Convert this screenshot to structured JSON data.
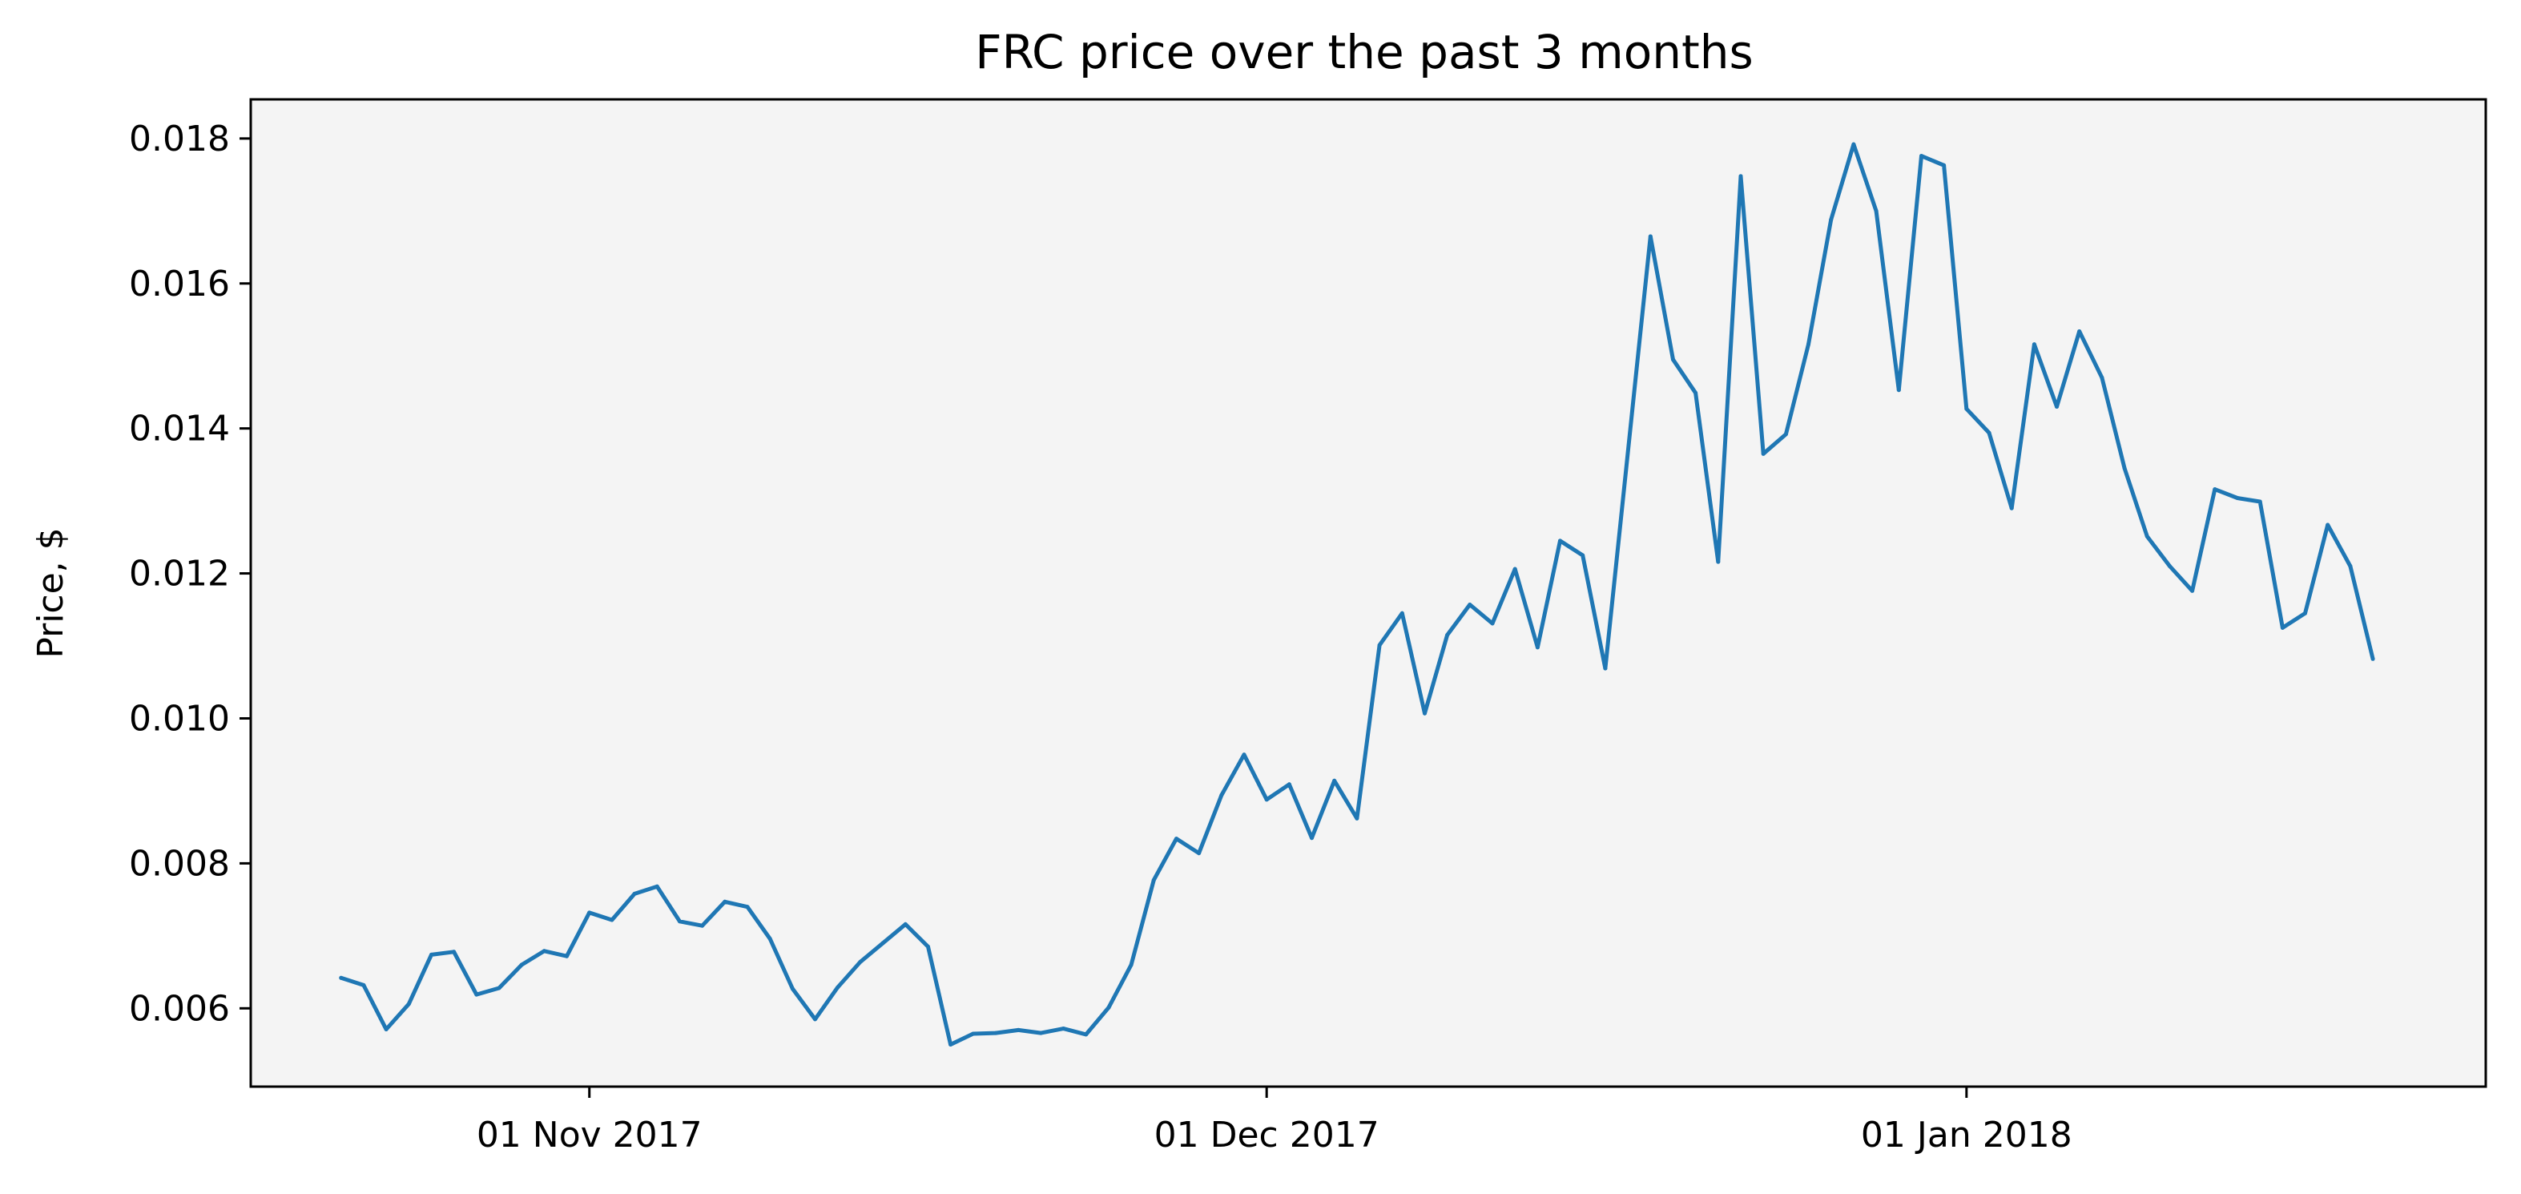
{
  "chart_data": {
    "type": "line",
    "title": "FRC price over the past 3 months",
    "xlabel": "",
    "ylabel": "Price, $",
    "x_scale": "time",
    "xlim": [
      "2017-10-17",
      "2018-01-24"
    ],
    "x_ticks": [
      {
        "date": "2017-11-01",
        "label": "01 Nov 2017"
      },
      {
        "date": "2017-12-01",
        "label": "01 Dec 2017"
      },
      {
        "date": "2018-01-01",
        "label": "01 Jan 2018"
      }
    ],
    "ylim": [
      0.00492,
      0.01854
    ],
    "y_ticks": [
      0.006,
      0.008,
      0.01,
      0.012,
      0.014,
      0.016,
      0.018
    ],
    "y_tick_labels": [
      "0.006",
      "0.008",
      "0.010",
      "0.012",
      "0.014",
      "0.016",
      "0.018"
    ],
    "grid": false,
    "plot_background": "#f4f4f4",
    "series": [
      {
        "color": "#1f77b4",
        "points": [
          [
            "2017-10-21",
            0.00642
          ],
          [
            "2017-10-22",
            0.00632
          ],
          [
            "2017-10-23",
            0.00571
          ],
          [
            "2017-10-24",
            0.00606
          ],
          [
            "2017-10-25",
            0.00674
          ],
          [
            "2017-10-26",
            0.00678
          ],
          [
            "2017-10-27",
            0.00619
          ],
          [
            "2017-10-28",
            0.00628
          ],
          [
            "2017-10-29",
            0.0066
          ],
          [
            "2017-10-30",
            0.00679
          ],
          [
            "2017-10-31",
            0.00672
          ],
          [
            "2017-11-01",
            0.00732
          ],
          [
            "2017-11-02",
            0.00722
          ],
          [
            "2017-11-03",
            0.00758
          ],
          [
            "2017-11-04",
            0.00768
          ],
          [
            "2017-11-05",
            0.0072
          ],
          [
            "2017-11-06",
            0.00714
          ],
          [
            "2017-11-07",
            0.00747
          ],
          [
            "2017-11-08",
            0.0074
          ],
          [
            "2017-11-09",
            0.00696
          ],
          [
            "2017-11-10",
            0.00627
          ],
          [
            "2017-11-11",
            0.00585
          ],
          [
            "2017-11-12",
            0.00629
          ],
          [
            "2017-11-13",
            0.00664
          ],
          [
            "2017-11-14",
            0.0069
          ],
          [
            "2017-11-15",
            0.00716
          ],
          [
            "2017-11-16",
            0.00685
          ],
          [
            "2017-11-17",
            0.0055
          ],
          [
            "2017-11-18",
            0.00565
          ],
          [
            "2017-11-19",
            0.00566
          ],
          [
            "2017-11-20",
            0.0057
          ],
          [
            "2017-11-21",
            0.00566
          ],
          [
            "2017-11-22",
            0.00572
          ],
          [
            "2017-11-23",
            0.00564
          ],
          [
            "2017-11-24",
            0.00601
          ],
          [
            "2017-11-25",
            0.0066
          ],
          [
            "2017-11-26",
            0.00777
          ],
          [
            "2017-11-27",
            0.00834
          ],
          [
            "2017-11-28",
            0.00814
          ],
          [
            "2017-11-29",
            0.00894
          ],
          [
            "2017-11-30",
            0.0095
          ],
          [
            "2017-12-01",
            0.00888
          ],
          [
            "2017-12-02",
            0.00909
          ],
          [
            "2017-12-03",
            0.00835
          ],
          [
            "2017-12-04",
            0.00914
          ],
          [
            "2017-12-05",
            0.00862
          ],
          [
            "2017-12-06",
            0.01101
          ],
          [
            "2017-12-07",
            0.01145
          ],
          [
            "2017-12-08",
            0.01007
          ],
          [
            "2017-12-09",
            0.01115
          ],
          [
            "2017-12-10",
            0.01157
          ],
          [
            "2017-12-11",
            0.01131
          ],
          [
            "2017-12-12",
            0.01206
          ],
          [
            "2017-12-13",
            0.01098
          ],
          [
            "2017-12-14",
            0.01245
          ],
          [
            "2017-12-15",
            0.01225
          ],
          [
            "2017-12-16",
            0.01069
          ],
          [
            "2017-12-18",
            0.01665
          ],
          [
            "2017-12-19",
            0.01495
          ],
          [
            "2017-12-20",
            0.01449
          ],
          [
            "2017-12-21",
            0.01216
          ],
          [
            "2017-12-22",
            0.01748
          ],
          [
            "2017-12-23",
            0.01365
          ],
          [
            "2017-12-24",
            0.01392
          ],
          [
            "2017-12-25",
            0.01516
          ],
          [
            "2017-12-26",
            0.01688
          ],
          [
            "2017-12-27",
            0.01792
          ],
          [
            "2017-12-28",
            0.017
          ],
          [
            "2017-12-29",
            0.01453
          ],
          [
            "2017-12-30",
            0.01776
          ],
          [
            "2017-12-31",
            0.01763
          ],
          [
            "2018-01-01",
            0.01427
          ],
          [
            "2018-01-02",
            0.01394
          ],
          [
            "2018-01-03",
            0.0129
          ],
          [
            "2018-01-04",
            0.01516
          ],
          [
            "2018-01-05",
            0.0143
          ],
          [
            "2018-01-06",
            0.01534
          ],
          [
            "2018-01-07",
            0.0147
          ],
          [
            "2018-01-08",
            0.01345
          ],
          [
            "2018-01-09",
            0.01251
          ],
          [
            "2018-01-10",
            0.0121
          ],
          [
            "2018-01-11",
            0.01176
          ],
          [
            "2018-01-12",
            0.01316
          ],
          [
            "2018-01-13",
            0.01304
          ],
          [
            "2018-01-14",
            0.01299
          ],
          [
            "2018-01-15",
            0.01125
          ],
          [
            "2018-01-16",
            0.01145
          ],
          [
            "2018-01-17",
            0.01267
          ],
          [
            "2018-01-18",
            0.0121
          ],
          [
            "2018-01-19",
            0.01082
          ]
        ]
      }
    ]
  }
}
